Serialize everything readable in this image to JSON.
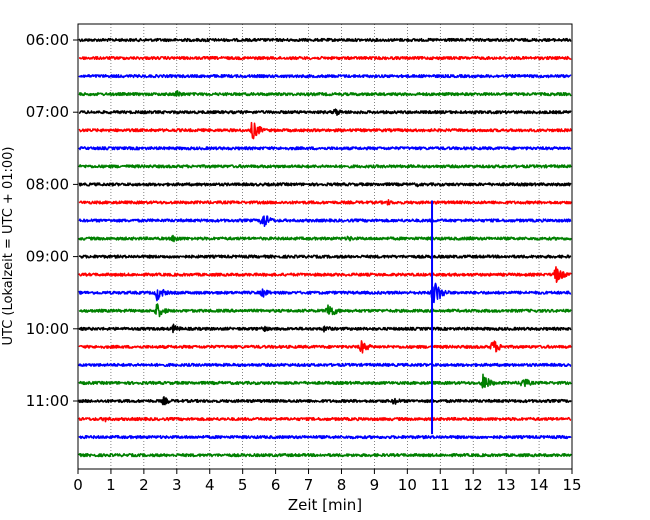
{
  "chart_data": {
    "type": "line",
    "title": "",
    "xlabel": "Zeit  [min]",
    "ylabel": "UTC (Lokalzeit = UTC + 01:00)",
    "xlim": [
      0,
      15
    ],
    "x_ticks": [
      0,
      1,
      2,
      3,
      4,
      5,
      6,
      7,
      8,
      9,
      10,
      11,
      12,
      13,
      14,
      15
    ],
    "x_tick_labels": [
      "0",
      "1",
      "2",
      "3",
      "4",
      "5",
      "6",
      "7",
      "8",
      "9",
      "10",
      "11",
      "12",
      "13",
      "14",
      "15"
    ],
    "y_tick_labels": [
      {
        "label": "06:00",
        "trace_index": 0
      },
      {
        "label": "07:00",
        "trace_index": 4
      },
      {
        "label": "08:00",
        "trace_index": 8
      },
      {
        "label": "09:00",
        "trace_index": 12
      },
      {
        "label": "10:00",
        "trace_index": 16
      },
      {
        "label": "11:00",
        "trace_index": 20
      }
    ],
    "grid": {
      "vertical": true,
      "style": "dotted"
    },
    "trace_minutes": 15,
    "trace_colors": [
      "#000000",
      "#ff0000",
      "#0000ff",
      "#008000"
    ],
    "traces": [
      {
        "start": "06:00",
        "events": [
          {
            "t": 3.9,
            "amp": 0.28
          }
        ]
      },
      {
        "start": "06:15",
        "events": []
      },
      {
        "start": "06:30",
        "events": []
      },
      {
        "start": "06:45",
        "events": [
          {
            "t": 3.0,
            "amp": 0.45
          }
        ]
      },
      {
        "start": "07:00",
        "events": [
          {
            "t": 7.8,
            "amp": 0.5
          }
        ]
      },
      {
        "start": "07:15",
        "events": [
          {
            "t": 5.3,
            "amp": 1.1
          }
        ]
      },
      {
        "start": "07:30",
        "events": []
      },
      {
        "start": "07:45",
        "events": []
      },
      {
        "start": "08:00",
        "events": [
          {
            "t": 10.3,
            "amp": 0.25
          }
        ]
      },
      {
        "start": "08:15",
        "events": [
          {
            "t": 9.4,
            "amp": 0.35
          }
        ]
      },
      {
        "start": "08:30",
        "events": [
          {
            "t": 5.6,
            "amp": 1.0
          }
        ]
      },
      {
        "start": "08:45",
        "events": [
          {
            "t": 2.9,
            "amp": 0.5
          },
          {
            "t": 8.2,
            "amp": 0.35
          },
          {
            "t": 11.9,
            "amp": 0.25
          }
        ]
      },
      {
        "start": "09:00",
        "events": []
      },
      {
        "start": "09:15",
        "events": [
          {
            "t": 14.5,
            "amp": 1.05
          }
        ]
      },
      {
        "start": "09:30",
        "events": [
          {
            "t": 2.4,
            "amp": 0.9
          },
          {
            "t": 5.6,
            "amp": 0.55
          },
          {
            "t": 10.8,
            "amp": 1.6
          }
        ]
      },
      {
        "start": "09:45",
        "events": [
          {
            "t": 2.4,
            "amp": 0.9
          },
          {
            "t": 7.6,
            "amp": 1.0
          }
        ]
      },
      {
        "start": "10:00",
        "events": [
          {
            "t": 2.9,
            "amp": 0.5
          },
          {
            "t": 5.6,
            "amp": 0.4
          },
          {
            "t": 7.5,
            "amp": 0.45
          }
        ]
      },
      {
        "start": "10:15",
        "events": [
          {
            "t": 8.6,
            "amp": 0.8
          },
          {
            "t": 12.6,
            "amp": 0.9
          }
        ]
      },
      {
        "start": "10:30",
        "events": []
      },
      {
        "start": "10:45",
        "events": [
          {
            "t": 12.3,
            "amp": 1.0
          },
          {
            "t": 13.5,
            "amp": 0.7
          }
        ]
      },
      {
        "start": "11:00",
        "events": [
          {
            "t": 2.6,
            "amp": 0.5
          },
          {
            "t": 9.6,
            "amp": 0.45
          }
        ]
      },
      {
        "start": "11:15",
        "events": [
          {
            "t": 0.8,
            "amp": 0.35
          }
        ]
      },
      {
        "start": "11:30",
        "events": []
      },
      {
        "start": "11:45",
        "events": []
      }
    ],
    "spike": {
      "t": 10.75,
      "from_trace": 9,
      "to_trace": 22,
      "color": "#0000ff"
    }
  }
}
